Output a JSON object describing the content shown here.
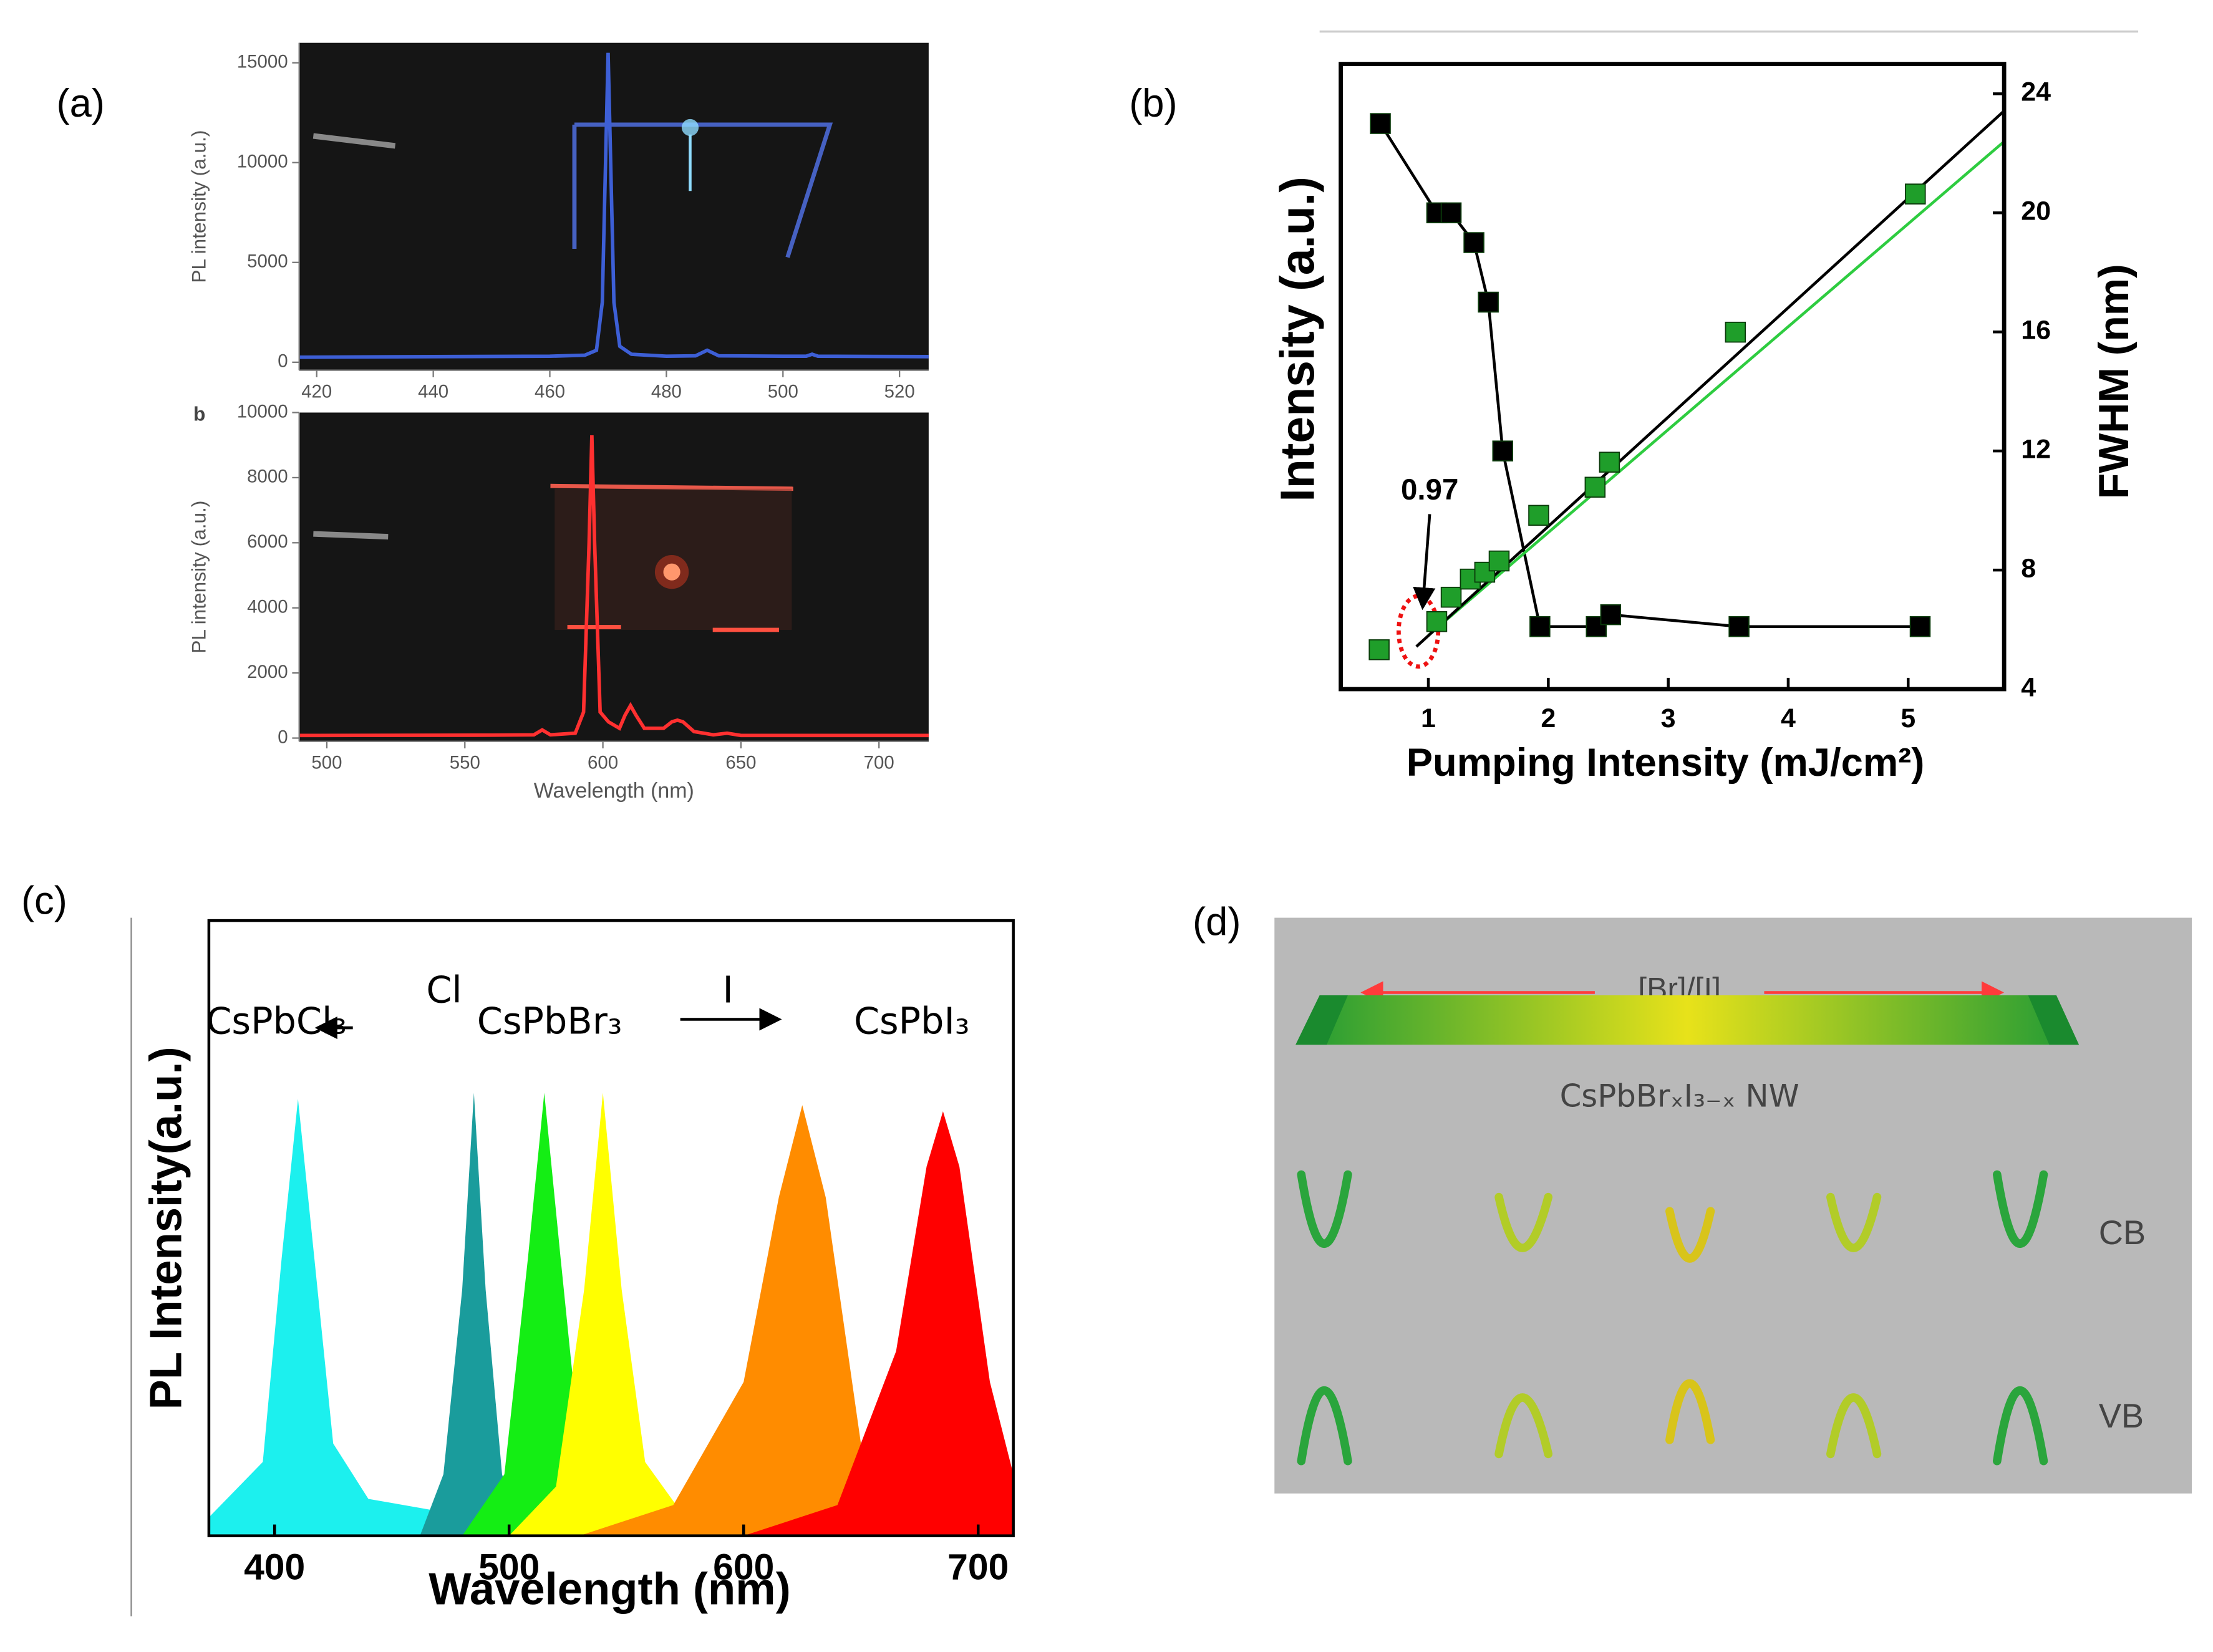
{
  "chart_data": [
    {
      "type": "line",
      "label": "(a)",
      "ylabel": "PL intensity (a.u.)",
      "xlim": [
        417,
        525
      ],
      "xticks": [
        420,
        440,
        460,
        480,
        500,
        520
      ],
      "ylim": [
        -400,
        16000
      ],
      "yticks": [
        0,
        5000,
        10000,
        15000
      ],
      "series": [
        {
          "color": "#3d5fd6",
          "x": [
            417,
            440,
            460,
            466,
            468,
            469,
            470,
            471,
            472,
            474,
            480,
            485,
            487,
            489,
            500,
            504,
            505,
            506,
            525
          ],
          "values": [
            250,
            280,
            300,
            350,
            600,
            3000,
            15500,
            3000,
            800,
            400,
            300,
            320,
            600,
            320,
            300,
            300,
            400,
            300,
            280
          ]
        }
      ]
    },
    {
      "type": "line",
      "inset_label": "b",
      "ylabel": "PL intensity (a.u.)",
      "xlabel": "Wavelength (nm)",
      "xlim": [
        490,
        718
      ],
      "xticks": [
        500,
        550,
        600,
        650,
        700
      ],
      "ylim": [
        -100,
        10000
      ],
      "yticks": [
        0,
        2000,
        4000,
        6000,
        8000,
        10000
      ],
      "series": [
        {
          "color": "#ff3030",
          "x": [
            490,
            560,
            575,
            578,
            581,
            590,
            593,
            595,
            596,
            597,
            599,
            602,
            606,
            608,
            610,
            612,
            615,
            622,
            625,
            627,
            629,
            633,
            640,
            645,
            650,
            718
          ],
          "values": [
            80,
            90,
            100,
            250,
            100,
            150,
            800,
            6000,
            9300,
            6000,
            800,
            500,
            300,
            700,
            1000,
            700,
            300,
            300,
            500,
            550,
            500,
            200,
            100,
            150,
            80,
            80
          ]
        }
      ]
    },
    {
      "type": "scatter",
      "label": "(b)",
      "ylabel": "Intensity (a.u.)",
      "y2label": "FWHM (nm)",
      "xlabel": "Pumping Intensity (mJ/cm²)",
      "annotation": "0.97",
      "xlim": [
        0.27,
        5.8
      ],
      "xticks": [
        1,
        2,
        3,
        4,
        5
      ],
      "ylim": [
        0,
        100
      ],
      "y2lim": [
        4,
        25
      ],
      "y2ticks": [
        4,
        8,
        12,
        16,
        20,
        24
      ],
      "series": [
        {
          "color": "#1f9e2a",
          "mode": "markers",
          "x": [
            0.59,
            1.07,
            1.19,
            1.35,
            1.47,
            1.59,
            1.92,
            2.39,
            2.51,
            3.56,
            5.06
          ],
          "values": [
            6.3,
            10.8,
            14.7,
            17.6,
            18.7,
            20.5,
            27.8,
            32.3,
            36.3,
            57.1,
            79.2
          ]
        },
        {
          "color": "#000000",
          "mode": "lines+markers",
          "axis": "y2",
          "x": [
            0.6,
            1.07,
            1.19,
            1.38,
            1.5,
            1.62,
            1.93,
            2.4,
            2.52,
            3.59,
            5.1
          ],
          "values": [
            23,
            20,
            20,
            19,
            17,
            12,
            6.1,
            6.1,
            6.5,
            6.1,
            6.1
          ]
        },
        {
          "color": "#2ecc40",
          "mode": "lines",
          "x": [
            1.0,
            5.8
          ],
          "values": [
            8.6,
            87.6
          ]
        },
        {
          "color": "#000000",
          "mode": "lines",
          "x": [
            0.9,
            5.8
          ],
          "values": [
            6.8,
            92.5
          ]
        }
      ]
    },
    {
      "type": "area",
      "label": "(c)",
      "ylabel": "PL Intensity(a.u.)",
      "xlabel": "Wavelength (nm)",
      "xlim": [
        372,
        715
      ],
      "xticks": [
        400,
        500,
        600,
        700
      ],
      "ylim": [
        0,
        100
      ],
      "annotations": [
        "CsPbCl₃",
        "Cl",
        "CsPbBr₃",
        "I",
        "CsPbI₃"
      ],
      "series": [
        {
          "color": "#1cf0ee",
          "x": [
            372,
            395,
            403,
            410,
            417,
            425,
            440,
            470,
            520
          ],
          "values": [
            3,
            12,
            45,
            71,
            45,
            15,
            6,
            4,
            3
          ]
        },
        {
          "color": "#1a9c9c",
          "x": [
            462,
            472,
            480,
            485,
            490,
            497,
            505
          ],
          "values": [
            0,
            10,
            40,
            72,
            40,
            10,
            0
          ]
        },
        {
          "color": "#14ee14",
          "x": [
            480,
            498,
            508,
            515,
            522,
            530,
            545,
            570
          ],
          "values": [
            0,
            10,
            45,
            72,
            45,
            15,
            4,
            0
          ]
        },
        {
          "color": "#ffff00",
          "x": [
            500,
            520,
            532,
            540,
            548,
            558,
            575,
            600
          ],
          "values": [
            0,
            8,
            40,
            72,
            40,
            12,
            3,
            0
          ]
        },
        {
          "color": "#ff8c00",
          "x": [
            530,
            570,
            600,
            615,
            625,
            635,
            650,
            670
          ],
          "values": [
            0,
            5,
            25,
            55,
            70,
            55,
            15,
            0
          ]
        },
        {
          "color": "#ff0000",
          "x": [
            600,
            640,
            665,
            678,
            685,
            692,
            705,
            715
          ],
          "values": [
            0,
            5,
            30,
            60,
            69,
            60,
            25,
            10
          ]
        }
      ]
    }
  ],
  "diagram": {
    "label": "(d)",
    "arrow_label": "[Br]/[I]",
    "nanowire_label": "CsPbBrₓI₃₋ₓ NW",
    "band_labels": [
      "CB",
      "VB"
    ]
  }
}
